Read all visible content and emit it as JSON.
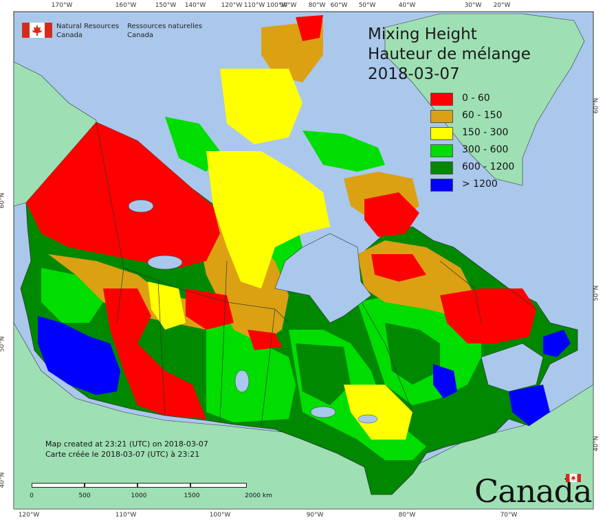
{
  "map": {
    "title_en": "Mixing Height",
    "title_fr": "Hauteur de mélange",
    "date": "2018-03-07",
    "legend": [
      {
        "label": "0 - 60",
        "color": "#ff0000"
      },
      {
        "label": "60 - 150",
        "color": "#dba113"
      },
      {
        "label": "150 - 300",
        "color": "#ffff00"
      },
      {
        "label": "300 - 600",
        "color": "#00dd00"
      },
      {
        "label": "600 - 1200",
        "color": "#008800"
      },
      {
        "label": "> 1200",
        "color": "#0000ff"
      }
    ],
    "credit_en": "Map created at 23:21 (UTC) on 2018-03-07",
    "credit_fr": "Carte créée le 2018-03-07 (UTC) à 23:21",
    "colors": {
      "ocean": "#aac8ec",
      "land_outside": "#9ee0b4",
      "border": "#333333"
    }
  },
  "agency": {
    "name_en_line1": "Natural Resources",
    "name_en_line2": "Canada",
    "name_fr_line1": "Ressources naturelles",
    "name_fr_line2": "Canada",
    "flag_icon": "canada-flag-icon"
  },
  "wordmark": "Canada",
  "graticule": {
    "top": [
      "170°W",
      "160°W",
      "150°W",
      "140°W",
      "120°W",
      "110°W",
      "100°W",
      "90°W",
      "80°W",
      "60°W",
      "50°W",
      "40°W",
      "30°W",
      "20°W"
    ],
    "bottom": [
      "120°W",
      "110°W",
      "100°W",
      "90°W",
      "80°W",
      "70°W"
    ],
    "left": [
      "60°N",
      "50°N",
      "40°N"
    ],
    "right": [
      "60°N",
      "50°N",
      "40°N"
    ]
  },
  "scalebar": {
    "labels": [
      "0",
      "500",
      "1000",
      "1500",
      "2000 km"
    ]
  }
}
